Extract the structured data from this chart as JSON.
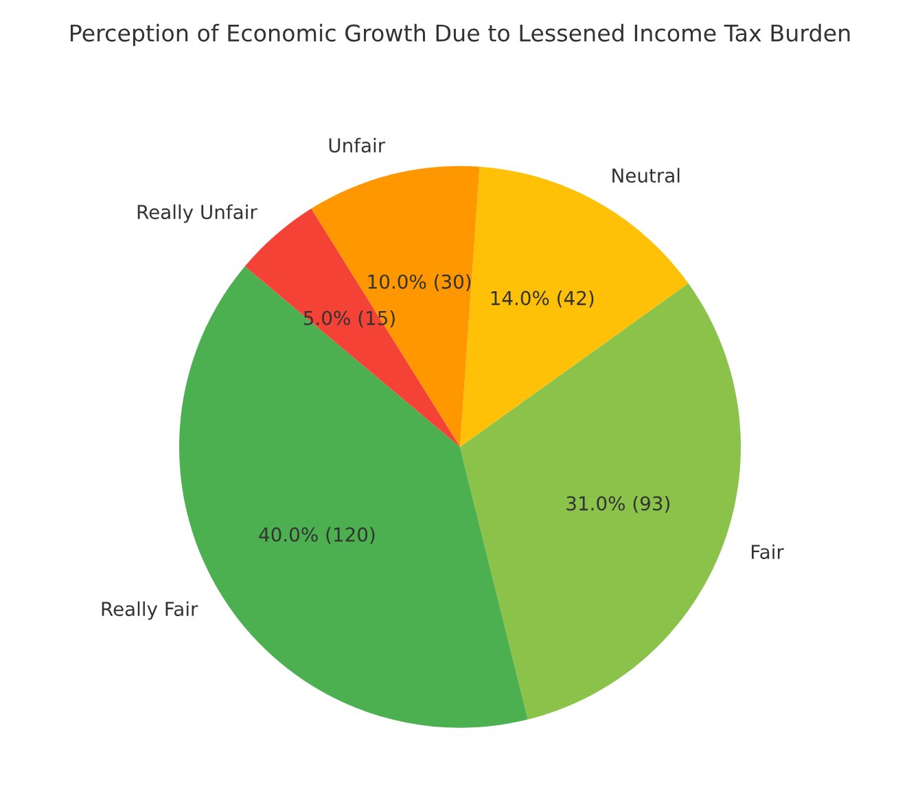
{
  "chart_data": {
    "type": "pie",
    "title": "Perception of Economic Growth Due to Lessened Income Tax Burden",
    "categories": [
      "Really Fair",
      "Fair",
      "Neutral",
      "Unfair",
      "Really Unfair"
    ],
    "values": [
      120,
      93,
      42,
      30,
      15
    ],
    "value_labels": [
      "40.0% (120)",
      "31.0% (93)",
      "14.0% (42)",
      "10.0% (30)",
      "5.0% (15)"
    ],
    "colors": [
      "#4caf50",
      "#8bc34a",
      "#ffc107",
      "#ff9800",
      "#f44336"
    ]
  }
}
